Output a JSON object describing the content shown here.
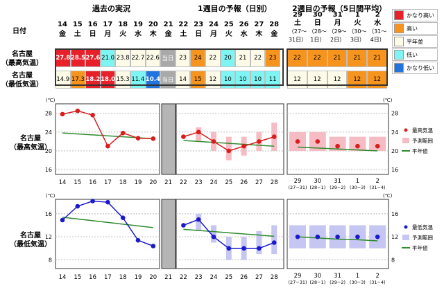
{
  "colors": {
    "very_high": "#e8202a",
    "high": "#f7941d",
    "normal": "#fdfbe8",
    "low": "#7ff5f3",
    "very_low": "#1f74de",
    "max_line": "#d91c1c",
    "min_line": "#1a1acd",
    "normal_line": "#2e8b2e",
    "max_band": "#f6bcc4",
    "min_band": "#c6c6f2"
  },
  "headers": {
    "past": "過去の実況",
    "week1": "1週目の予報（日別）",
    "week2": "2週目の予報（5日間平均）",
    "date_label": "日付"
  },
  "days": [
    {
      "d": "14",
      "w": "金"
    },
    {
      "d": "15",
      "w": "土"
    },
    {
      "d": "16",
      "w": "日"
    },
    {
      "d": "17",
      "w": "月"
    },
    {
      "d": "18",
      "w": "火"
    },
    {
      "d": "19",
      "w": "水"
    },
    {
      "d": "20",
      "w": "木"
    },
    {
      "d": "21",
      "w": "金"
    },
    {
      "d": "22",
      "w": "土"
    },
    {
      "d": "23",
      "w": "日"
    },
    {
      "d": "24",
      "w": "月"
    },
    {
      "d": "25",
      "w": "火"
    },
    {
      "d": "26",
      "w": "水"
    },
    {
      "d": "27",
      "w": "木"
    },
    {
      "d": "28",
      "w": "金"
    }
  ],
  "weeks2": [
    {
      "d": "29",
      "w": "土",
      "r": "（27～31日）"
    },
    {
      "d": "30",
      "w": "日",
      "r": "（28～1日）"
    },
    {
      "d": "31",
      "w": "月",
      "r": "（29～2日）"
    },
    {
      "d": "1",
      "w": "火",
      "r": "（30～3日）"
    },
    {
      "d": "2",
      "w": "水",
      "r": "（31～4日）"
    }
  ],
  "row_labels": {
    "max": [
      "名古屋",
      "（最高気温）"
    ],
    "min": [
      "名古屋",
      "（最低気温）"
    ]
  },
  "max_row": {
    "cells": [
      {
        "t": "27.8",
        "c": "very_high",
        "b": true
      },
      {
        "t": "28.5",
        "c": "very_high",
        "b": true
      },
      {
        "t": "27.6",
        "c": "very_high",
        "b": true
      },
      {
        "t": "21.0",
        "c": "low"
      },
      {
        "t": "23.8",
        "c": "normal"
      },
      {
        "t": "22.7",
        "c": "normal"
      },
      {
        "t": "22.6",
        "c": "normal"
      },
      {
        "t": "当日",
        "c": "grey"
      },
      {
        "t": "23",
        "c": "normal"
      },
      {
        "t": "24",
        "c": "high"
      },
      {
        "t": "22",
        "c": "normal"
      },
      {
        "t": "20",
        "c": "low"
      },
      {
        "t": "21",
        "c": "normal"
      },
      {
        "t": "22",
        "c": "normal"
      },
      {
        "t": "23",
        "c": "high"
      }
    ],
    "week2": [
      {
        "t": "22",
        "c": "high"
      },
      {
        "t": "22",
        "c": "high"
      },
      {
        "t": "21",
        "c": "high"
      },
      {
        "t": "21",
        "c": "high"
      },
      {
        "t": "21",
        "c": "high"
      }
    ]
  },
  "min_row": {
    "cells": [
      {
        "t": "14.9",
        "c": "normal"
      },
      {
        "t": "17.3",
        "c": "high"
      },
      {
        "t": "18.2",
        "c": "very_high",
        "b": true
      },
      {
        "t": "18.0",
        "c": "very_high",
        "b": true
      },
      {
        "t": "15.3",
        "c": "normal"
      },
      {
        "t": "11.4",
        "c": "low"
      },
      {
        "t": "10.4",
        "c": "very_low",
        "b": true
      },
      {
        "t": "当日",
        "c": "grey"
      },
      {
        "t": "14",
        "c": "normal"
      },
      {
        "t": "15",
        "c": "high"
      },
      {
        "t": "12",
        "c": "normal"
      },
      {
        "t": "10",
        "c": "low"
      },
      {
        "t": "10",
        "c": "low"
      },
      {
        "t": "10",
        "c": "low"
      },
      {
        "t": "11",
        "c": "low"
      }
    ],
    "week2": [
      {
        "t": "12",
        "c": "normal"
      },
      {
        "t": "12",
        "c": "normal"
      },
      {
        "t": "12",
        "c": "normal"
      },
      {
        "t": "12",
        "c": "high"
      },
      {
        "t": "12",
        "c": "high"
      }
    ]
  },
  "legend_table": [
    {
      "label": "かなり高い",
      "c": "very_high"
    },
    {
      "label": "高い",
      "c": "high"
    },
    {
      "label": "平年並",
      "c": "normal"
    },
    {
      "label": "低い",
      "c": "low"
    },
    {
      "label": "かなり低い",
      "c": "very_low"
    }
  ],
  "chart_labels": {
    "max": [
      "名古屋",
      "（最高気温）"
    ],
    "min": [
      "名古屋",
      "（最低気温）"
    ]
  },
  "unit": "(℃)",
  "x_ticks": [
    "14",
    "15",
    "16",
    "17",
    "18",
    "19",
    "20",
    "21",
    "22",
    "23",
    "24",
    "25",
    "26",
    "27",
    "28"
  ],
  "x_ticks_week2": [
    {
      "d": "29",
      "r": "(27−31)"
    },
    {
      "d": "30",
      "r": "(28−1)"
    },
    {
      "d": "31",
      "r": "(29−2)"
    },
    {
      "d": "1",
      "r": "(30−3)"
    },
    {
      "d": "2",
      "r": "(31−4)"
    }
  ],
  "legend_max": {
    "series": "最高気温",
    "band": "予測範囲",
    "normal": "平年値"
  },
  "legend_min": {
    "series": "最低気温",
    "band": "予測範囲",
    "normal": "平年値"
  },
  "chart_data": [
    {
      "type": "line",
      "title": "名古屋（最高気温）",
      "ylabel": "(℃)",
      "ylim": [
        15,
        30
      ],
      "yticks": [
        16,
        20,
        24,
        28
      ],
      "x": [
        "14",
        "15",
        "16",
        "17",
        "18",
        "19",
        "20",
        "21",
        "22",
        "23",
        "24",
        "25",
        "26",
        "27",
        "28"
      ],
      "series": [
        {
          "name": "最高気温",
          "values": [
            27.8,
            28.5,
            27.6,
            21.0,
            23.8,
            22.7,
            22.6,
            null,
            23,
            24,
            22,
            20,
            21,
            22,
            23
          ]
        },
        {
          "name": "予測範囲",
          "low": [
            null,
            null,
            null,
            null,
            null,
            null,
            null,
            null,
            null,
            22,
            20,
            18,
            19,
            20,
            20
          ],
          "high": [
            null,
            null,
            null,
            null,
            null,
            null,
            null,
            null,
            null,
            25,
            24,
            23,
            23,
            24,
            26
          ]
        },
        {
          "name": "平年値",
          "values": [
            23.8,
            23.6,
            23.4,
            23.2,
            23.0,
            22.8,
            22.6,
            null,
            22.2,
            22.0,
            21.8,
            21.6,
            21.4,
            21.2,
            21.0
          ]
        }
      ],
      "week2": {
        "x": [
          "29",
          "30",
          "31",
          "1",
          "2"
        ],
        "values": [
          22,
          22,
          21,
          21,
          21
        ],
        "low": [
          20,
          20,
          20,
          20,
          20
        ],
        "high": [
          24,
          24,
          23,
          23,
          23
        ],
        "normal": [
          20.8,
          20.6,
          20.4,
          20.2,
          20.0
        ]
      }
    },
    {
      "type": "line",
      "title": "名古屋（最低気温）",
      "ylabel": "(℃)",
      "ylim": [
        6.5,
        18.5
      ],
      "yticks": [
        8,
        12,
        16
      ],
      "x": [
        "14",
        "15",
        "16",
        "17",
        "18",
        "19",
        "20",
        "21",
        "22",
        "23",
        "24",
        "25",
        "26",
        "27",
        "28"
      ],
      "series": [
        {
          "name": "最低気温",
          "values": [
            14.9,
            17.3,
            18.2,
            18.0,
            15.3,
            11.4,
            10.4,
            null,
            14,
            15,
            12,
            10,
            10,
            10,
            11
          ]
        },
        {
          "name": "予測範囲",
          "low": [
            null,
            null,
            null,
            null,
            null,
            null,
            null,
            null,
            null,
            13,
            11,
            8,
            8,
            9,
            9
          ],
          "high": [
            null,
            null,
            null,
            null,
            null,
            null,
            null,
            null,
            null,
            16,
            14,
            12,
            12,
            13,
            14
          ]
        },
        {
          "name": "平年値",
          "values": [
            15.4,
            15.1,
            14.8,
            14.5,
            14.2,
            13.9,
            13.6,
            null,
            13.3,
            13.1,
            12.9,
            12.7,
            12.5,
            12.3,
            12.1
          ]
        }
      ],
      "week2": {
        "x": [
          "29",
          "30",
          "31",
          "1",
          "2"
        ],
        "values": [
          12,
          12,
          12,
          12,
          12
        ],
        "low": [
          10,
          10,
          10,
          10,
          10
        ],
        "high": [
          14,
          14,
          14,
          14,
          14
        ],
        "normal": [
          12.0,
          11.8,
          11.6,
          11.5,
          11.3
        ]
      }
    }
  ]
}
